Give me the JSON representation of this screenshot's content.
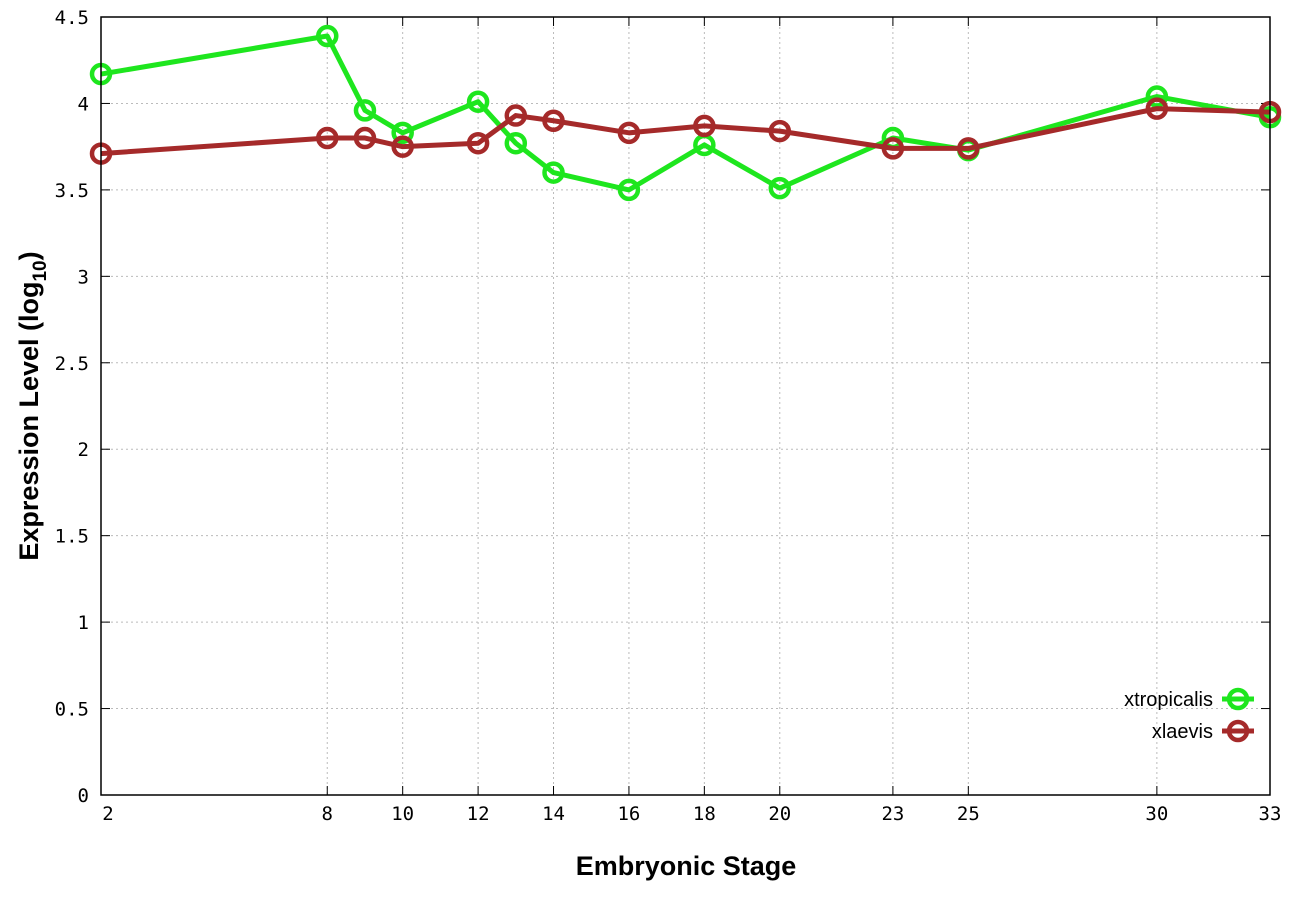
{
  "chart_data": {
    "type": "line",
    "xlabel": "Embryonic Stage",
    "ylabel": "Expression Level (log",
    "ylabel_sub": "10",
    "ylabel_close": ")",
    "x_ticks": [
      2,
      8,
      10,
      12,
      14,
      16,
      18,
      20,
      23,
      25,
      30,
      33
    ],
    "y_ticks": [
      "0",
      "0.5",
      "1",
      "1.5",
      "2",
      "2.5",
      "3",
      "3.5",
      "4",
      "4.5"
    ],
    "xlim": [
      2,
      33
    ],
    "ylim": [
      0,
      4.5
    ],
    "grid": true,
    "legend_placement": "bottom-right",
    "x": [
      2,
      8,
      9,
      10,
      12,
      13,
      14,
      16,
      18,
      20,
      23,
      25,
      30,
      33
    ],
    "series": [
      {
        "name": "xtropicalis",
        "color": "#1ee61e",
        "values": [
          4.17,
          4.39,
          3.96,
          3.83,
          4.01,
          3.77,
          3.6,
          3.5,
          3.76,
          3.51,
          3.8,
          3.73,
          4.04,
          3.92
        ]
      },
      {
        "name": "xlaevis",
        "color": "#a52a2a",
        "values": [
          3.71,
          3.8,
          3.8,
          3.75,
          3.77,
          3.93,
          3.9,
          3.83,
          3.87,
          3.84,
          3.74,
          3.74,
          3.97,
          3.95
        ]
      }
    ]
  }
}
